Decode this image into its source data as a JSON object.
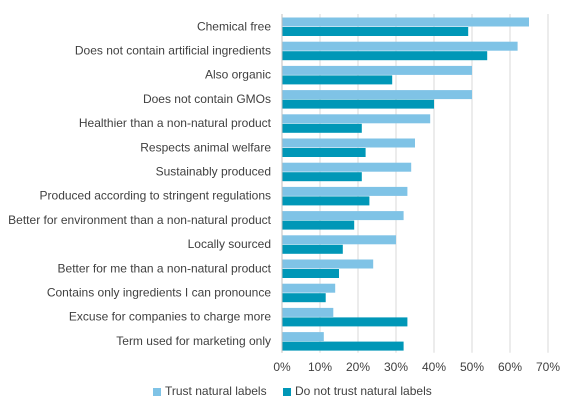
{
  "chart_data": {
    "type": "bar",
    "orientation": "horizontal",
    "categories": [
      "Chemical free",
      "Does not contain artificial ingredients",
      "Also organic",
      "Does not contain GMOs",
      "Healthier than a non-natural product",
      "Respects animal welfare",
      "Sustainably produced",
      "Produced according to stringent regulations",
      "Better for environment than a non-natural product",
      "Locally sourced",
      "Better for me than a non-natural product",
      "Contains only ingredients I can pronounce",
      "Excuse for companies to charge more",
      "Term used for marketing only"
    ],
    "series": [
      {
        "name": "Trust natural labels",
        "color": "#7fc3e6",
        "values": [
          65,
          62,
          50,
          50,
          39,
          35,
          34,
          33,
          32,
          30,
          24,
          14,
          13.5,
          11
        ]
      },
      {
        "name": "Do not trust natural labels",
        "color": "#0097b7",
        "values": [
          49,
          54,
          29,
          40,
          21,
          22,
          21,
          23,
          19,
          16,
          15,
          11.5,
          33,
          32
        ]
      }
    ],
    "xlim": [
      0,
      70
    ],
    "xticks": [
      0,
      10,
      20,
      30,
      40,
      50,
      60,
      70
    ],
    "tick_format": "{v}%",
    "grid": "vertical",
    "legend_position": "bottom"
  }
}
